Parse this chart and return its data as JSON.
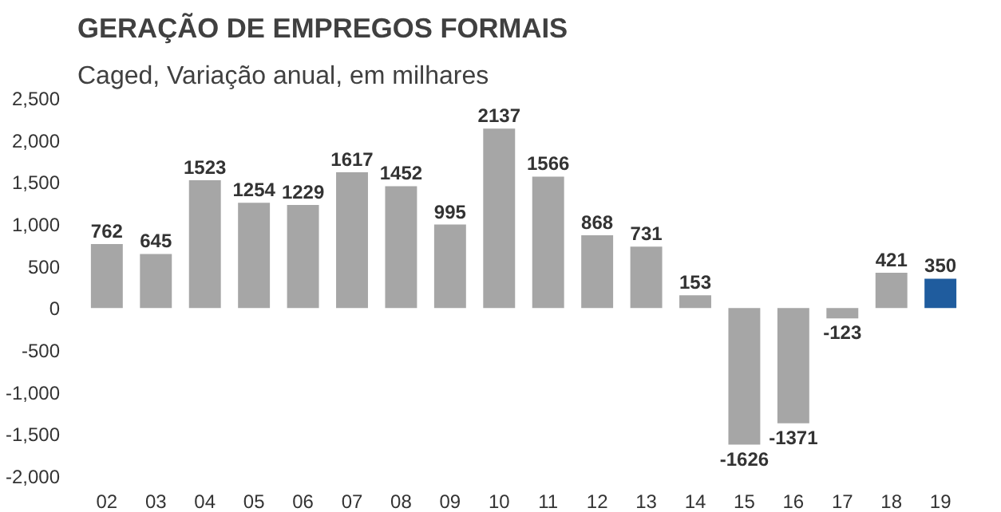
{
  "chart_data": {
    "type": "bar",
    "title": "GERAÇÃO DE EMPREGOS FORMAIS",
    "subtitle": "Caged, Variação anual, em milhares",
    "categories": [
      "02",
      "03",
      "04",
      "05",
      "06",
      "07",
      "08",
      "09",
      "10",
      "11",
      "12",
      "13",
      "14",
      "15",
      "16",
      "17",
      "18",
      "19"
    ],
    "values": [
      762,
      645,
      1523,
      1254,
      1229,
      1617,
      1452,
      995,
      2137,
      1566,
      868,
      731,
      153,
      -1626,
      -1371,
      -123,
      421,
      350
    ],
    "colors": [
      "#a6a6a6",
      "#a6a6a6",
      "#a6a6a6",
      "#a6a6a6",
      "#a6a6a6",
      "#a6a6a6",
      "#a6a6a6",
      "#a6a6a6",
      "#a6a6a6",
      "#a6a6a6",
      "#a6a6a6",
      "#a6a6a6",
      "#a6a6a6",
      "#a6a6a6",
      "#a6a6a6",
      "#a6a6a6",
      "#a6a6a6",
      "#1f5c9e"
    ],
    "ylim": [
      -2000,
      2500
    ],
    "yticks": [
      {
        "value": -2000,
        "label": "-2,000"
      },
      {
        "value": -1500,
        "label": "-1,500"
      },
      {
        "value": -1000,
        "label": "-1,000"
      },
      {
        "value": -500,
        "label": "-500"
      },
      0,
      {
        "value": 500,
        "label": "500"
      },
      {
        "value": 1000,
        "label": "1,000"
      },
      {
        "value": 1500,
        "label": "1,500"
      },
      {
        "value": 2000,
        "label": "2,000"
      },
      {
        "value": 2500,
        "label": "2,500"
      }
    ],
    "data_labels": true,
    "grid": false
  }
}
